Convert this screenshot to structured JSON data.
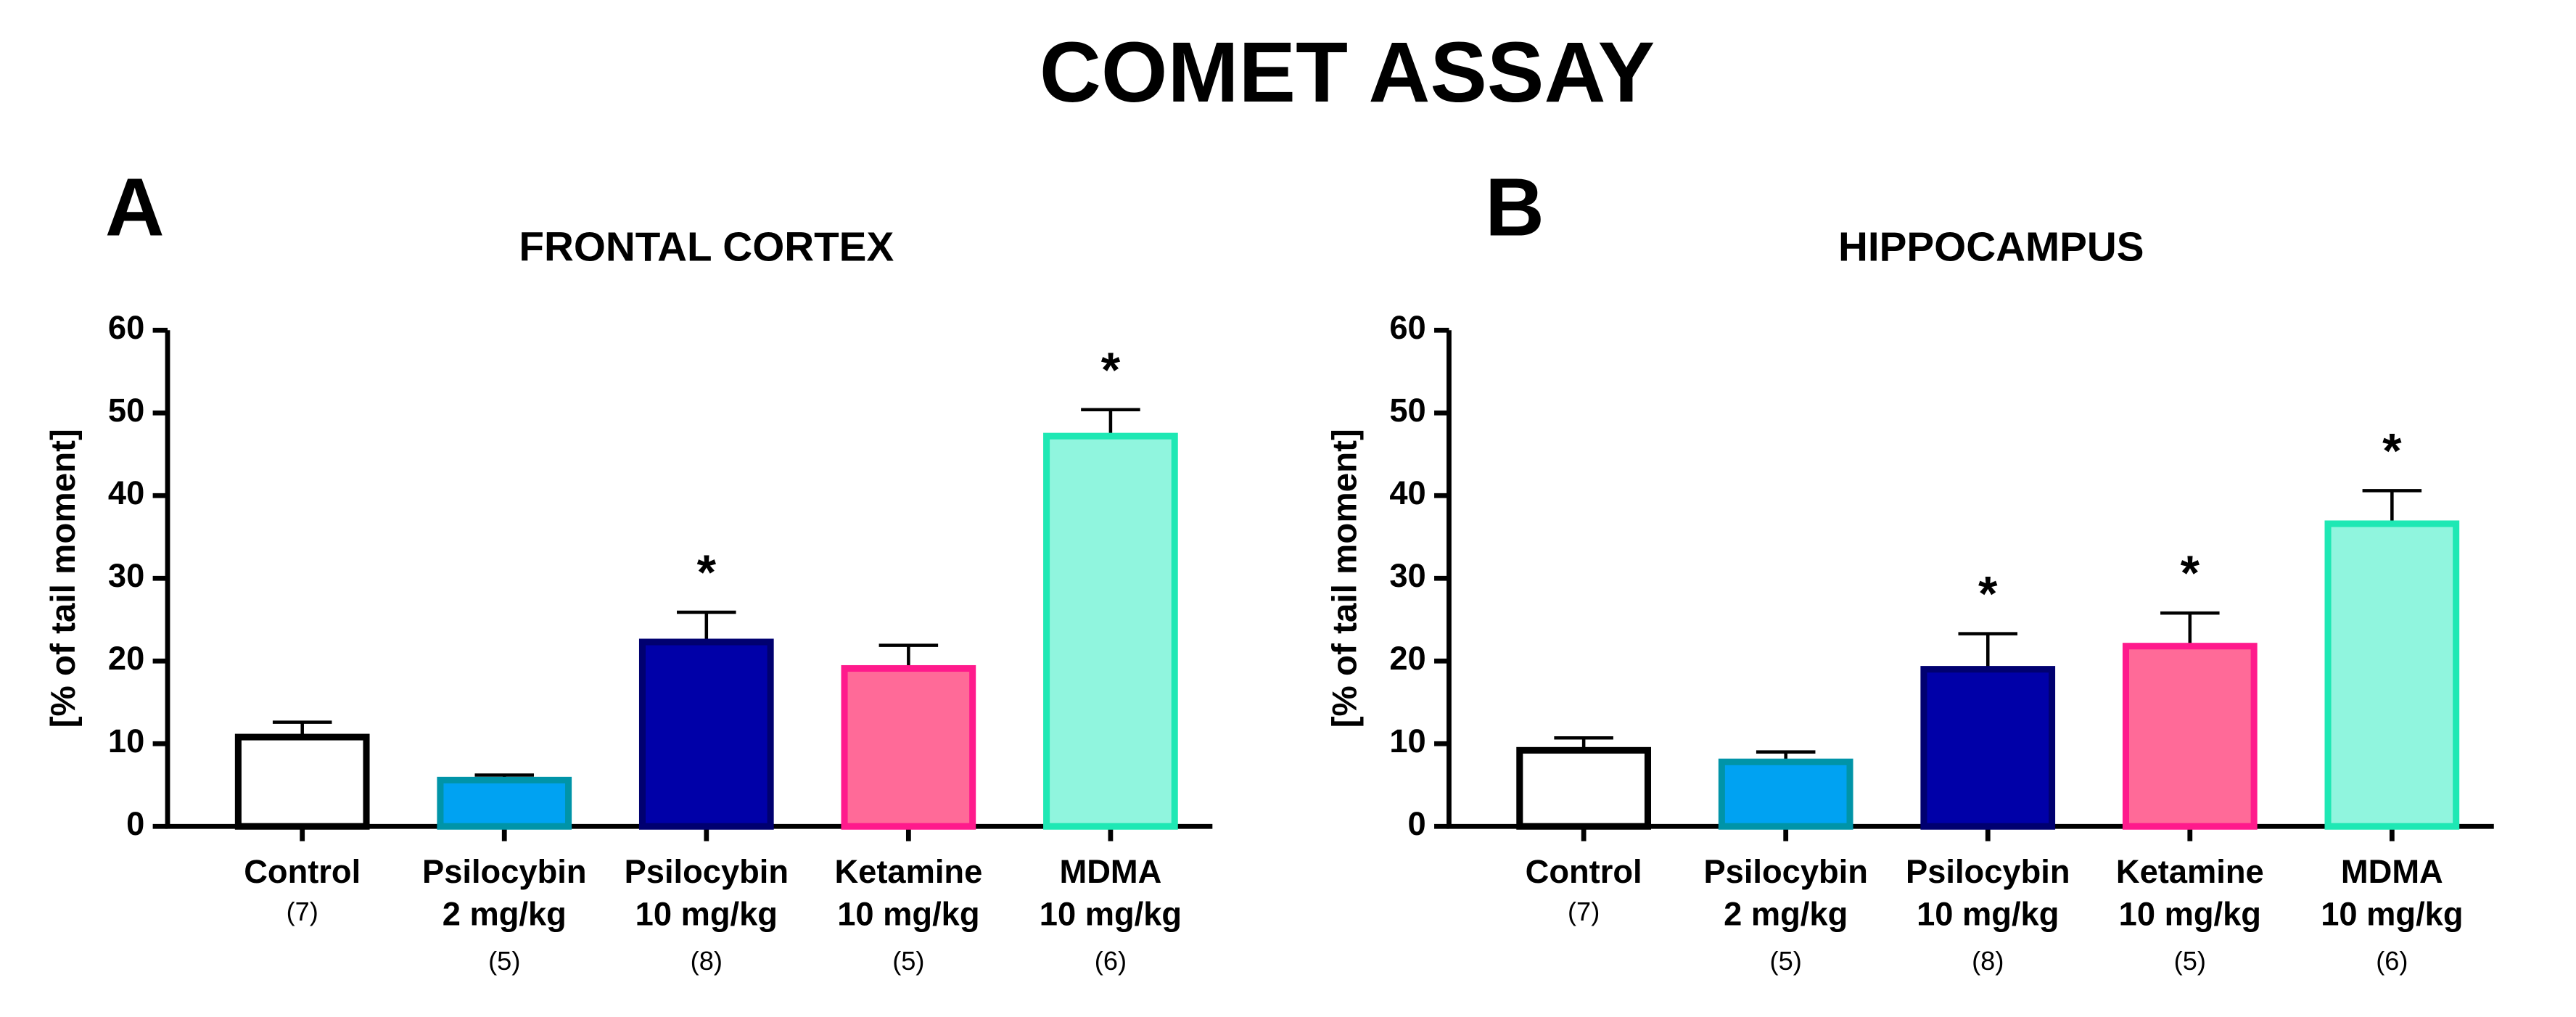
{
  "title": "COMET ASSAY",
  "chart_data": [
    {
      "type": "bar",
      "panel": "A",
      "title": "FRONTAL CORTEX",
      "ylabel": "[% of tail moment]",
      "categories": [
        [
          "Control"
        ],
        [
          "Psilocybin",
          "2 mg/kg"
        ],
        [
          "Psilocybin",
          "10 mg/kg"
        ],
        [
          "Ketamine",
          "10 mg/kg"
        ],
        [
          "MDMA",
          "10 mg/kg"
        ]
      ],
      "n_labels": [
        "(7)",
        "(5)",
        "(8)",
        "(5)",
        "(6)"
      ],
      "values": [
        10.8,
        5.6,
        22.3,
        19.1,
        47.2
      ],
      "errors": [
        1.8,
        0.6,
        3.6,
        2.8,
        3.2
      ],
      "significance": [
        null,
        null,
        "*",
        null,
        "*"
      ],
      "colors": [
        "#ffffff",
        "#00a2f2",
        "#0000a8",
        "#ff6a98",
        "#90f5de"
      ],
      "edge_colors": [
        "#000000",
        "#0094a8",
        "#000070",
        "#ff1a8c",
        "#1ee8b4"
      ],
      "ylim": [
        0,
        60
      ],
      "yticks": [
        0,
        10,
        20,
        30,
        40,
        50,
        60
      ]
    },
    {
      "type": "bar",
      "panel": "B",
      "title": "HIPPOCAMPUS",
      "ylabel": "[% of tail moment]",
      "categories": [
        [
          "Control"
        ],
        [
          "Psilocybin",
          "2 mg/kg"
        ],
        [
          "Psilocybin",
          "10 mg/kg"
        ],
        [
          "Ketamine",
          "10 mg/kg"
        ],
        [
          "MDMA",
          "10 mg/kg"
        ]
      ],
      "n_labels": [
        "(7)",
        "(5)",
        "(8)",
        "(5)",
        "(6)"
      ],
      "values": [
        9.2,
        7.8,
        19.0,
        21.8,
        36.6
      ],
      "errors": [
        1.5,
        1.2,
        4.3,
        4.0,
        4.0
      ],
      "significance": [
        null,
        null,
        "*",
        "*",
        "*"
      ],
      "colors": [
        "#ffffff",
        "#00a2f2",
        "#0000a8",
        "#ff6a98",
        "#90f5de"
      ],
      "edge_colors": [
        "#000000",
        "#0094a8",
        "#000070",
        "#ff1a8c",
        "#1ee8b4"
      ],
      "ylim": [
        0,
        60
      ],
      "yticks": [
        0,
        10,
        20,
        30,
        40,
        50,
        60
      ]
    }
  ]
}
